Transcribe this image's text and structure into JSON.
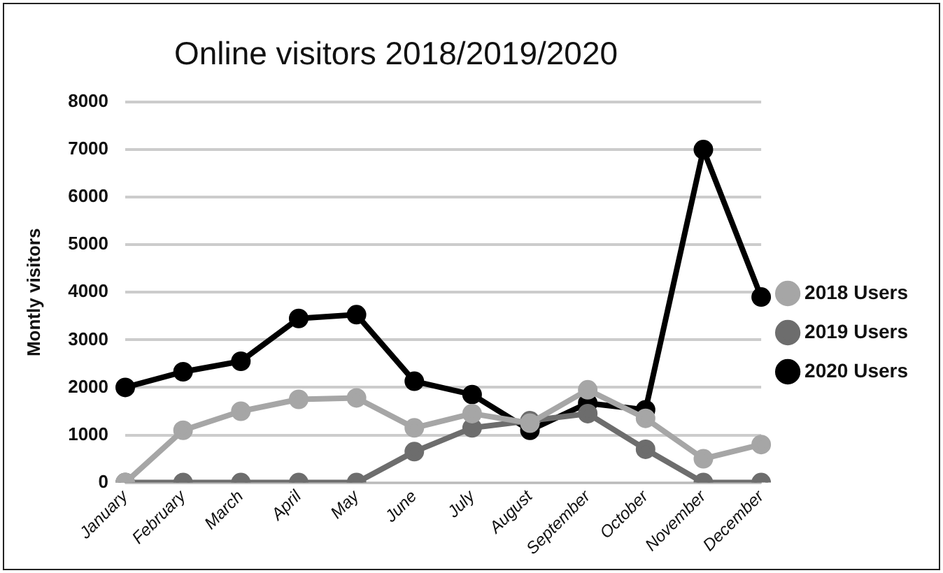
{
  "chart_data": {
    "type": "line",
    "title": "Online visitors 2018/2019/2020",
    "ylabel": "Montly visitors",
    "categories": [
      "January",
      "February",
      "March",
      "April",
      "May",
      "June",
      "July",
      "August",
      "September",
      "October",
      "November",
      "December"
    ],
    "series": [
      {
        "name": "2018 Users",
        "color": "#a6a6a6",
        "values": [
          0,
          1100,
          1500,
          1750,
          1780,
          1150,
          1450,
          1250,
          1950,
          1350,
          500,
          800
        ]
      },
      {
        "name": "2019 Users",
        "color": "#6d6d6d",
        "values": [
          0,
          0,
          0,
          0,
          0,
          650,
          1150,
          1300,
          1450,
          700,
          0,
          0
        ]
      },
      {
        "name": "2020 Users",
        "color": "#000000",
        "values": [
          2000,
          2330,
          2550,
          3450,
          3530,
          2130,
          1850,
          1100,
          1670,
          1530,
          7000,
          3900
        ]
      }
    ],
    "ylim": [
      0,
      8000
    ],
    "yticks": [
      0,
      1000,
      2000,
      3000,
      4000,
      5000,
      6000,
      7000,
      8000
    ],
    "grid": "y",
    "legend": "right",
    "marker": "circle",
    "line_style": "solid"
  }
}
